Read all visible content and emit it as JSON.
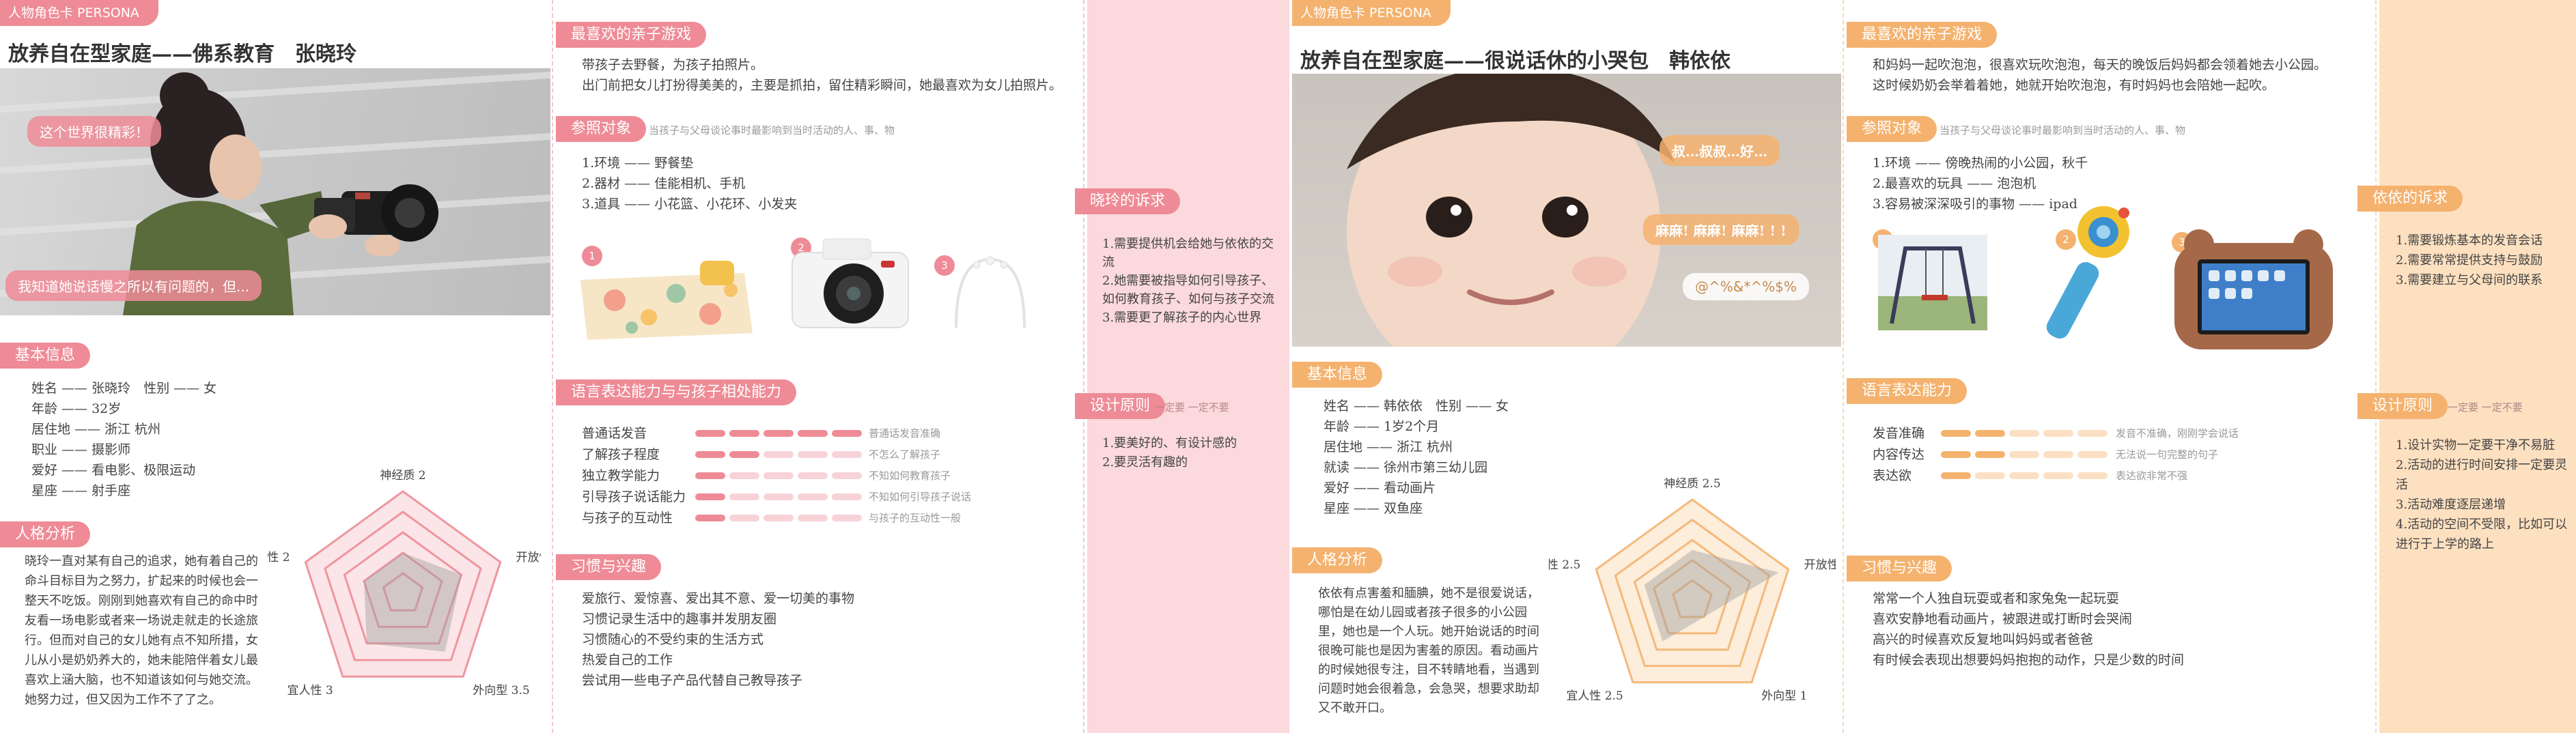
{
  "colors": {
    "pink": "#ee8b96",
    "orange": "#f4b26e",
    "pink_band": "#fbd9dd",
    "orange_band": "#fde0c0"
  },
  "left": {
    "header_tag": "人物角色卡 PERSONA",
    "title": "放养自在型家庭——佛系教育　张晓玲",
    "photo_bubbles": [
      "这个世界很精彩！",
      "我知道她说话慢之所以有问题的，但..."
    ],
    "basic_info_tag": "基本信息",
    "basic_info": [
      "姓名 —— 张晓玲　性别 —— 女",
      "年龄 —— 32岁",
      "居住地 —— 浙江 杭州",
      "职业 —— 摄影师",
      "爱好 —— 看电影、极限运动",
      "星座 —— 射手座"
    ],
    "personality_tag": "人格分析",
    "personality_text": "晓玲一直对某有自己的追求，她有着自己的命斗目标目为之努力，扩起来的时候也会一整天不吃饭。刚刚到她喜欢有自己的命中时友看一场电影或者来一场说走就走的长途旅行。但而对自己的女儿她有点不知所措，女儿从小是奶奶养大的，她未能陪伴着女儿最喜欢上涵大脑，也不知道该如何与她交流。她努力过，但又因为工作不了了之。",
    "radar": {
      "labels": [
        "神经质",
        "开放性",
        "外向型",
        "宜人性",
        "严谨性"
      ],
      "values": [
        2,
        3,
        3.5,
        3,
        2
      ],
      "max": 5
    },
    "games_tag": "最喜欢的亲子游戏",
    "games_text": [
      "带孩子去野餐，为孩子拍照片。",
      "出门前把女儿打扮得美美的，主要是抓拍，留住精彩瞬间，她最喜欢为女儿拍照片。"
    ],
    "ref_tag": "参照对象",
    "ref_note": "当孩子与父母谈论事时最影响到当时活动的人、事、物",
    "ref_items": [
      "1.环境 —— 野餐垫",
      "2.器材 —— 佳能相机、手机",
      "3.道具 —— 小花篮、小花环、小发夹"
    ],
    "ref_nums": [
      "1",
      "2",
      "3"
    ],
    "lang_tag": "语言表达能力与与孩子相处能力",
    "skills": [
      {
        "label": "普通话发音",
        "value": 5,
        "desc": "普通话发音准确"
      },
      {
        "label": "了解孩子程度",
        "value": 2,
        "desc": "不怎么了解孩子"
      },
      {
        "label": "独立教学能力",
        "value": 1,
        "desc": "不知如何教育孩子"
      },
      {
        "label": "引导孩子说话能力",
        "value": 1,
        "desc": "不知如何引导孩子说话"
      },
      {
        "label": "与孩子的互动性",
        "value": 1,
        "desc": "与孩子的互动性一般"
      }
    ],
    "skills_max": 5,
    "habits_tag": "习惯与兴趣",
    "habits": [
      "爱旅行、爱惊喜、爱出其不意、爱一切美的事物",
      "习惯记录生活中的趣事并发朋友圈",
      "习惯随心的不受约束的生活方式",
      "热爱自己的工作",
      "尝试用一些电子产品代替自己教导孩子"
    ],
    "needs_tag": "晓玲的诉求",
    "needs": [
      "1.需要提供机会给她与依依的交流",
      "2.她需要被指导如何引导孩子、如何教育孩子、如何与孩子交流",
      "3.需要更了解孩子的内心世界"
    ],
    "design_tag": "设计原则",
    "design_note": "一定要 一定不要",
    "design": [
      "1.要美好的、有设计感的",
      "2.要灵活有趣的"
    ]
  },
  "right": {
    "header_tag": "人物角色卡 PERSONA",
    "title": "放养自在型家庭——很说话休的小哭包　韩依依",
    "photo_bubbles": [
      "叔…叔叔…好…",
      "麻麻! 麻麻! 麻麻! ! !",
      "@^%&*^%$%"
    ],
    "basic_info_tag": "基本信息",
    "basic_info": [
      "姓名 —— 韩依依　性别 —— 女",
      "年龄 —— 1岁2个月",
      "居住地 —— 浙江 杭州",
      "就读 —— 徐州市第三幼儿园",
      "爱好 —— 看动画片",
      "星座 —— 双鱼座"
    ],
    "personality_tag": "人格分析",
    "personality_text": "依依有点害羞和腼腆，她不是很爱说话，哪怕是在幼儿园或者孩子很多的小公园里，她也是一个人玩。她开始说话的时间很晚可能也是因为害羞的原因。看动画片的时候她很专注，目不转睛地看，当遇到问题时她会很着急，会急哭，想要求助却又不敢开口。",
    "radar": {
      "labels": [
        "神经质",
        "开放性",
        "外向型",
        "宜人性",
        "严谨性"
      ],
      "values": [
        2.5,
        4.5,
        1,
        2.5,
        2.5
      ],
      "max": 5
    },
    "games_tag": "最喜欢的亲子游戏",
    "games_text": [
      "和妈妈一起吹泡泡，很喜欢玩吹泡泡，每天的晚饭后妈妈都会领着她去小公园。",
      "这时候奶奶会举着着她，她就开始吹泡泡，有时妈妈也会陪她一起吹。"
    ],
    "ref_tag": "参照对象",
    "ref_note": "当孩子与父母谈论事时最影响到当时活动的人、事、物",
    "ref_items": [
      "1.环境 —— 傍晚热闹的小公园，秋千",
      "2.最喜欢的玩具 —— 泡泡机",
      "3.容易被深深吸引的事物 —— ipad"
    ],
    "ref_nums": [
      "1",
      "2",
      "3"
    ],
    "lang_tag": "语言表达能力",
    "skills": [
      {
        "label": "发音准确",
        "value": 2,
        "desc": "发音不准确，刚刚学会说话"
      },
      {
        "label": "内容传达",
        "value": 2,
        "desc": "无法说一句完整的句子"
      },
      {
        "label": "表达欲",
        "value": 1,
        "desc": "表达欲非常不强"
      }
    ],
    "skills_max": 5,
    "habits_tag": "习惯与兴趣",
    "habits": [
      "常常一个人独自玩耍或者和家兔兔一起玩耍",
      "喜欢安静地看动画片，被跟进或打断时会哭闹",
      "高兴的时候喜欢反复地叫妈妈或者爸爸",
      "有时候会表现出想要妈妈抱抱的动作，只是少数的时间"
    ],
    "needs_tag": "依依的诉求",
    "needs": [
      "1.需要锻炼基本的发音会话",
      "2.需要常常提供支持与鼓励",
      "3.需要建立与父母间的联系"
    ],
    "design_tag": "设计原则",
    "design_note": "一定要 一定不要",
    "design": [
      "1.设计实物一定要干净不易脏",
      "2.活动的进行时间安排一定要灵活",
      "3.活动难度逐层递增",
      "4.活动的空间不受限，比如可以进行于上学的路上"
    ]
  }
}
